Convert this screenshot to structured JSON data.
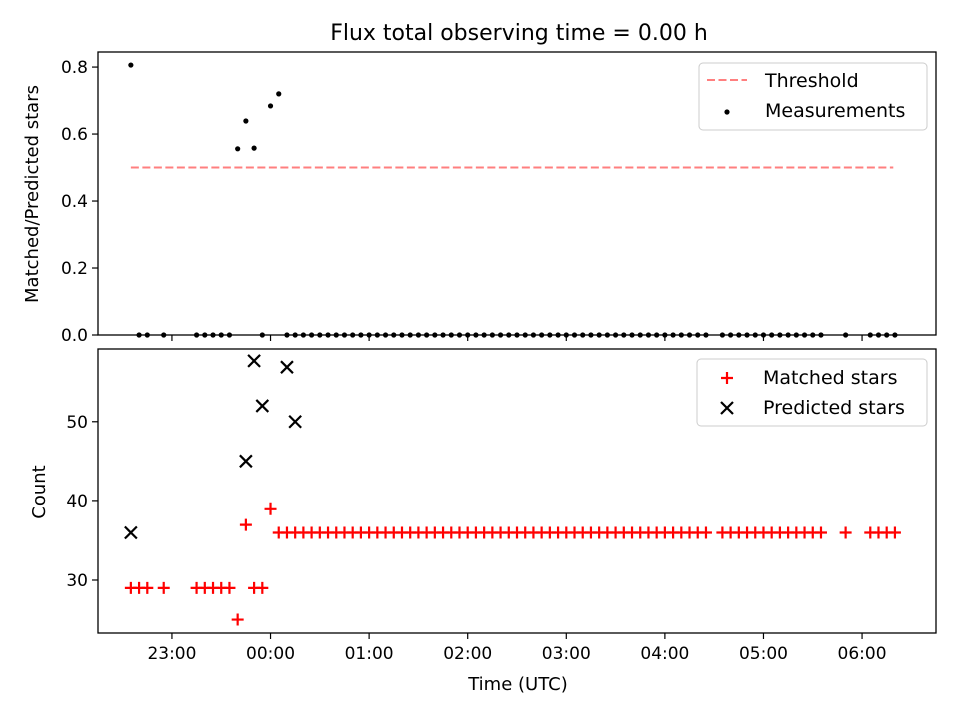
{
  "title": "Flux total observing time = 0.00 h",
  "colors": {
    "matched": "#ff0000",
    "predicted": "#000000",
    "threshold": "#ff7f7f",
    "measurement": "#000000"
  },
  "chart_data": [
    {
      "type": "scatter",
      "ylabel": "Matched/Predicted stars",
      "ylim": [
        0,
        0.845
      ],
      "yticks": [
        0.0,
        0.2,
        0.4,
        0.6,
        0.8
      ],
      "ytick_labels": [
        "0.0",
        "0.2",
        "0.4",
        "0.6",
        "0.8"
      ],
      "legend_position": "top-right",
      "threshold": {
        "name": "Threshold",
        "y": 0.5,
        "x_range": [
          "22:35",
          "06:19"
        ]
      },
      "series": [
        {
          "name": "Measurements",
          "x": [
            "22:35",
            "22:40",
            "22:45",
            "22:55",
            "23:15",
            "23:20",
            "23:25",
            "23:30",
            "23:35",
            "23:40",
            "23:45",
            "23:50",
            "23:55",
            "00:00",
            "00:05",
            "00:10",
            "00:15",
            "00:20",
            "00:25",
            "00:30",
            "00:35",
            "00:40",
            "00:45",
            "00:50",
            "00:55",
            "01:00",
            "01:05",
            "01:10",
            "01:15",
            "01:20",
            "01:25",
            "01:30",
            "01:35",
            "01:40",
            "01:45",
            "01:50",
            "01:55",
            "02:00",
            "02:05",
            "02:10",
            "02:15",
            "02:20",
            "02:25",
            "02:30",
            "02:35",
            "02:40",
            "02:45",
            "02:50",
            "02:55",
            "03:00",
            "03:05",
            "03:10",
            "03:15",
            "03:20",
            "03:25",
            "03:30",
            "03:35",
            "03:40",
            "03:45",
            "03:50",
            "03:55",
            "04:00",
            "04:05",
            "04:10",
            "04:15",
            "04:20",
            "04:25",
            "04:35",
            "04:40",
            "04:45",
            "04:50",
            "04:55",
            "05:00",
            "05:05",
            "05:10",
            "05:15",
            "05:20",
            "05:25",
            "05:30",
            "05:35",
            "05:50",
            "06:05",
            "06:10",
            "06:15",
            "06:20"
          ],
          "y": [
            0.806,
            0,
            0,
            0,
            0,
            0,
            0,
            0,
            0,
            0.556,
            0.639,
            0.558,
            0,
            0.684,
            0.72,
            0,
            0,
            0,
            0,
            0,
            0,
            0,
            0,
            0,
            0,
            0,
            0,
            0,
            0,
            0,
            0,
            0,
            0,
            0,
            0,
            0,
            0,
            0,
            0,
            0,
            0,
            0,
            0,
            0,
            0,
            0,
            0,
            0,
            0,
            0,
            0,
            0,
            0,
            0,
            0,
            0,
            0,
            0,
            0,
            0,
            0,
            0,
            0,
            0,
            0,
            0,
            0,
            0,
            0,
            0,
            0,
            0,
            0,
            0,
            0,
            0,
            0,
            0,
            0,
            0,
            0,
            0,
            0,
            0,
            0
          ]
        }
      ]
    },
    {
      "type": "scatter",
      "ylabel": "Count",
      "xlabel": "Time (UTC)",
      "ylim": [
        23.3,
        59.2
      ],
      "yticks": [
        30,
        40,
        50
      ],
      "ytick_labels": [
        "30",
        "40",
        "50"
      ],
      "xlim": [
        "22:15",
        "06:45"
      ],
      "xticks": [
        "23:00",
        "00:00",
        "01:00",
        "02:00",
        "03:00",
        "04:00",
        "05:00",
        "06:00"
      ],
      "xtick_labels": [
        "23:00",
        "00:00",
        "01:00",
        "02:00",
        "03:00",
        "04:00",
        "05:00",
        "06:00"
      ],
      "legend_position": "top-right",
      "series": [
        {
          "name": "Matched stars",
          "marker": "+",
          "x": [
            "22:35",
            "22:40",
            "22:45",
            "22:55",
            "23:15",
            "23:20",
            "23:25",
            "23:30",
            "23:35",
            "23:40",
            "23:45",
            "23:50",
            "23:55",
            "00:00",
            "00:05",
            "00:10",
            "00:15",
            "00:20",
            "00:25",
            "00:30",
            "00:35",
            "00:40",
            "00:45",
            "00:50",
            "00:55",
            "01:00",
            "01:05",
            "01:10",
            "01:15",
            "01:20",
            "01:25",
            "01:30",
            "01:35",
            "01:40",
            "01:45",
            "01:50",
            "01:55",
            "02:00",
            "02:05",
            "02:10",
            "02:15",
            "02:20",
            "02:25",
            "02:30",
            "02:35",
            "02:40",
            "02:45",
            "02:50",
            "02:55",
            "03:00",
            "03:05",
            "03:10",
            "03:15",
            "03:20",
            "03:25",
            "03:30",
            "03:35",
            "03:40",
            "03:45",
            "03:50",
            "03:55",
            "04:00",
            "04:05",
            "04:10",
            "04:15",
            "04:20",
            "04:25",
            "04:35",
            "04:40",
            "04:45",
            "04:50",
            "04:55",
            "05:00",
            "05:05",
            "05:10",
            "05:15",
            "05:20",
            "05:25",
            "05:30",
            "05:35",
            "05:50",
            "06:05",
            "06:10",
            "06:15",
            "06:20"
          ],
          "y": [
            29,
            29,
            29,
            29,
            29,
            29,
            29,
            29,
            29,
            25,
            37,
            29,
            29,
            39,
            36,
            36,
            36,
            36,
            36,
            36,
            36,
            36,
            36,
            36,
            36,
            36,
            36,
            36,
            36,
            36,
            36,
            36,
            36,
            36,
            36,
            36,
            36,
            36,
            36,
            36,
            36,
            36,
            36,
            36,
            36,
            36,
            36,
            36,
            36,
            36,
            36,
            36,
            36,
            36,
            36,
            36,
            36,
            36,
            36,
            36,
            36,
            36,
            36,
            36,
            36,
            36,
            36,
            36,
            36,
            36,
            36,
            36,
            36,
            36,
            36,
            36,
            36,
            36,
            36,
            36,
            36,
            36,
            36,
            36,
            36
          ]
        },
        {
          "name": "Predicted stars",
          "marker": "x",
          "x": [
            "22:35",
            "23:45",
            "23:50",
            "23:55",
            "00:10",
            "00:15"
          ],
          "y": [
            36,
            45,
            57.7,
            52,
            56.9,
            50
          ]
        }
      ]
    }
  ]
}
